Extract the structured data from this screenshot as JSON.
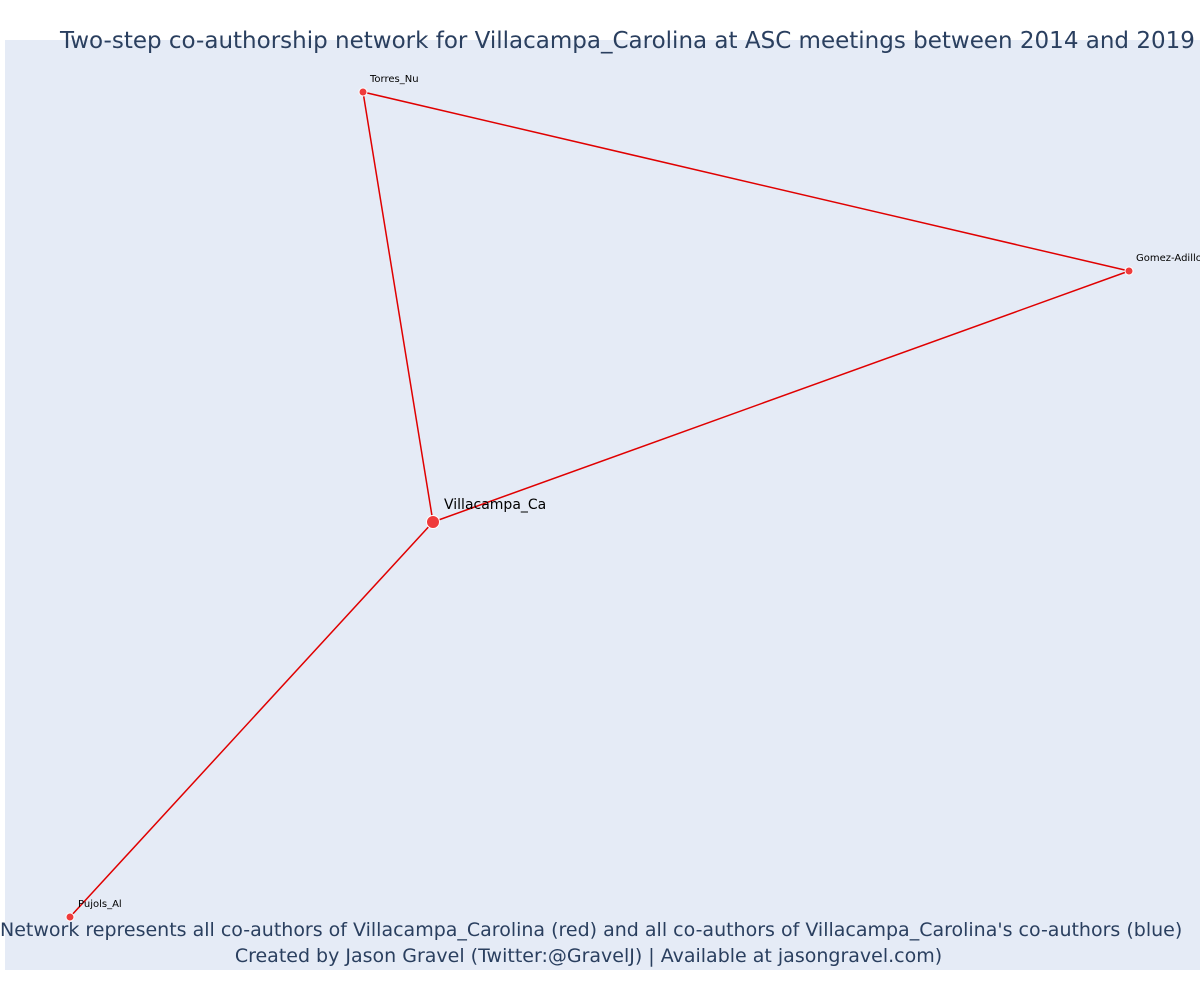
{
  "chart_data": {
    "type": "network",
    "title": "Two-step co-authorship network for Villacampa_Carolina at ASC meetings between 2014 and 2019",
    "annotations": [
      "Network represents all co-authors of Villacampa_Carolina (red) and all co-authors of Villacampa_Carolina's co-authors (blue)",
      "Created by Jason Gravel (Twitter:@GravelJ) | Available at jasongravel.com)"
    ],
    "colors": {
      "edge": "#e00000",
      "node": "#ef3b3b",
      "background": "#e5ebf6",
      "text": "#2a3f5f"
    },
    "nodes": [
      {
        "id": "Villacampa_Ca",
        "label": "Villacampa_Ca",
        "group": "focal"
      },
      {
        "id": "Torres_Nu",
        "label": "Torres_Nu",
        "group": "co-author"
      },
      {
        "id": "Gomez-Adillo",
        "label": "Gomez-Adillo",
        "group": "co-author"
      },
      {
        "id": "Pujols_Al",
        "label": "Pujols_Al",
        "group": "co-author"
      }
    ],
    "edges": [
      [
        "Villacampa_Ca",
        "Torres_Nu"
      ],
      [
        "Villacampa_Ca",
        "Gomez-Adillo"
      ],
      [
        "Villacampa_Ca",
        "Pujols_Al"
      ],
      [
        "Torres_Nu",
        "Gomez-Adillo"
      ]
    ]
  }
}
